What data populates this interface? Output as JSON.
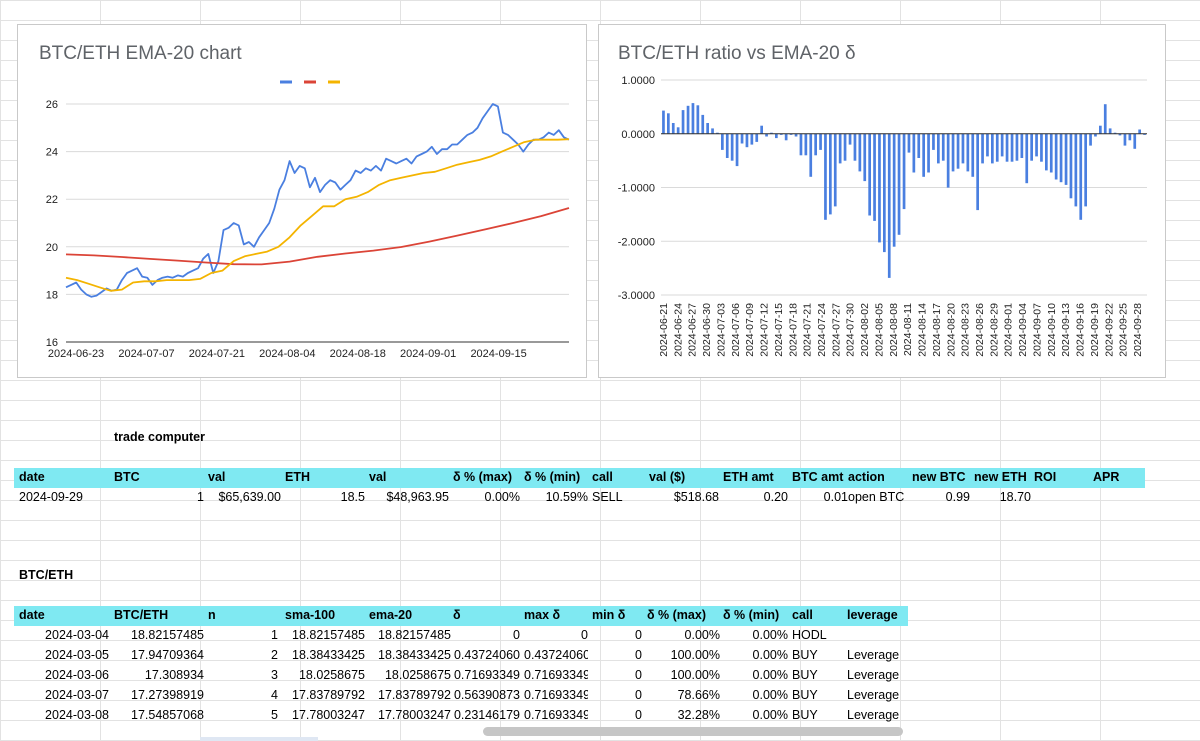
{
  "colors": {
    "blue": "#4a7fe0",
    "red": "#db4437",
    "yellow": "#f4b400",
    "header_bg": "#7fe9f2",
    "bar": "#4a7fe0"
  },
  "chart1": {
    "title": "BTC/ETH EMA-20 chart",
    "y_ticks": [
      "26",
      "24",
      "22",
      "20",
      "18",
      "16"
    ],
    "x_ticks": [
      "2024-06-23",
      "2024-07-07",
      "2024-07-21",
      "2024-08-04",
      "2024-08-18",
      "2024-09-01",
      "2024-09-15"
    ]
  },
  "chart2": {
    "title": "BTC/ETH ratio vs EMA-20 δ",
    "y_ticks": [
      "1.0000",
      "0.0000",
      "-1.0000",
      "-2.0000",
      "-3.0000"
    ],
    "x_ticks": [
      "2024-06-21",
      "2024-06-24",
      "2024-06-27",
      "2024-06-30",
      "2024-07-03",
      "2024-07-06",
      "2024-07-09",
      "2024-07-12",
      "2024-07-15",
      "2024-07-18",
      "2024-07-21",
      "2024-07-24",
      "2024-07-27",
      "2024-07-30",
      "2024-08-02",
      "2024-08-05",
      "2024-08-08",
      "2024-08-11",
      "2024-08-14",
      "2024-08-17",
      "2024-08-20",
      "2024-08-23",
      "2024-08-26",
      "2024-08-29",
      "2024-09-01",
      "2024-09-04",
      "2024-09-07",
      "2024-09-10",
      "2024-09-13",
      "2024-09-16",
      "2024-09-19",
      "2024-09-22",
      "2024-09-25",
      "2024-09-28"
    ]
  },
  "chart_data": [
    {
      "type": "line",
      "title": "BTC/ETH EMA-20 chart",
      "x_range": [
        "2024-06-21",
        "2024-09-29"
      ],
      "ylim": [
        16,
        26
      ],
      "grid": true,
      "legend": "top",
      "series": [
        {
          "color": "#4a7fe0",
          "values": [
            18.3,
            18.4,
            18.5,
            18.2,
            18.0,
            17.9,
            17.95,
            18.1,
            18.25,
            18.15,
            18.2,
            18.6,
            18.9,
            19.0,
            19.1,
            18.75,
            18.7,
            18.4,
            18.6,
            18.7,
            18.75,
            18.7,
            18.8,
            18.75,
            18.9,
            19.0,
            19.1,
            19.5,
            19.7,
            18.9,
            19.4,
            20.7,
            20.8,
            21.0,
            20.9,
            20.1,
            20.2,
            20.0,
            20.4,
            20.7,
            21.0,
            21.6,
            22.4,
            22.8,
            23.6,
            23.1,
            23.4,
            23.3,
            22.5,
            22.9,
            22.3,
            22.6,
            22.8,
            22.7,
            22.4,
            22.6,
            22.8,
            23.2,
            23.1,
            23.3,
            23.2,
            23.4,
            23.2,
            23.7,
            23.6,
            23.5,
            23.6,
            23.7,
            23.5,
            23.8,
            23.9,
            24.0,
            24.2,
            23.9,
            24.1,
            24.1,
            24.3,
            24.3,
            24.5,
            24.7,
            24.8,
            25.0,
            25.4,
            25.7,
            26.0,
            25.9,
            24.8,
            24.7,
            24.5,
            24.3,
            24.0,
            24.3,
            24.5,
            24.5,
            24.6,
            24.8,
            24.7,
            24.9,
            24.6,
            24.5
          ]
        },
        {
          "color": "#db4437",
          "values": [
            19.68,
            19.64,
            19.57,
            19.49,
            19.42,
            19.34,
            19.27,
            19.26,
            19.38,
            19.58,
            19.72,
            19.84,
            19.99,
            20.22,
            20.47,
            20.73,
            21.0,
            21.29,
            21.63
          ]
        },
        {
          "color": "#f4b400",
          "values": [
            18.7,
            18.6,
            18.45,
            18.3,
            18.15,
            18.2,
            18.5,
            18.55,
            18.55,
            18.6,
            18.6,
            18.6,
            18.65,
            18.9,
            19.0,
            19.4,
            19.6,
            19.7,
            19.8,
            20.0,
            20.4,
            20.9,
            21.3,
            21.7,
            21.7,
            22.0,
            22.1,
            22.3,
            22.6,
            22.8,
            22.9,
            23.0,
            23.1,
            23.15,
            23.3,
            23.45,
            23.55,
            23.65,
            23.8,
            24.0,
            24.2,
            24.4,
            24.5,
            24.5,
            24.5,
            24.52
          ]
        }
      ]
    },
    {
      "type": "bar",
      "title": "BTC/ETH ratio vs EMA-20 δ",
      "ylim": [
        -3,
        1
      ],
      "grid": true,
      "x_range": [
        "2024-06-21",
        "2024-09-29"
      ],
      "values": [
        0.43,
        0.38,
        0.2,
        0.12,
        0.44,
        0.52,
        0.57,
        0.53,
        0.35,
        0.2,
        0.1,
        0.02,
        -0.3,
        -0.45,
        -0.5,
        -0.6,
        -0.18,
        -0.25,
        -0.2,
        -0.15,
        0.15,
        -0.05,
        0.02,
        -0.08,
        -0.02,
        -0.12,
        -0.02,
        -0.05,
        -0.4,
        -0.4,
        -0.8,
        -0.4,
        -0.3,
        -1.6,
        -1.5,
        -1.35,
        -0.55,
        -0.5,
        -0.2,
        -0.5,
        -0.7,
        -0.88,
        -1.52,
        -1.62,
        -2.02,
        -2.2,
        -2.68,
        -2.1,
        -1.88,
        -1.4,
        -0.35,
        -0.72,
        -0.45,
        -0.8,
        -0.72,
        -0.3,
        -0.55,
        -0.5,
        -1.0,
        -0.7,
        -0.65,
        -0.55,
        -0.7,
        -0.8,
        -1.42,
        -0.55,
        -0.42,
        -0.55,
        -0.52,
        -0.42,
        -0.52,
        -0.52,
        -0.5,
        -0.45,
        -0.92,
        -0.5,
        -0.42,
        -0.52,
        -0.68,
        -0.72,
        -0.85,
        -0.9,
        -0.95,
        -1.2,
        -1.35,
        -1.6,
        -1.35,
        -0.22,
        -0.05,
        0.15,
        0.55,
        0.1,
        0.02,
        -0.03,
        -0.22,
        -0.12,
        -0.28,
        0.08,
        -0.02
      ]
    }
  ],
  "section1": {
    "label": "trade computer",
    "headers": [
      "date",
      "BTC",
      "val",
      "ETH",
      "val",
      "δ % (max)",
      "δ % (min)",
      "call",
      "val ($)",
      "ETH amt",
      "BTC amt",
      "action",
      "new BTC",
      "new ETH",
      "ROI",
      "APR"
    ],
    "row": [
      "2024-09-29",
      "1",
      "$65,639.00",
      "18.5",
      "$48,963.95",
      "0.00%",
      "10.59%",
      "SELL",
      "$518.68",
      "0.20",
      "0.01",
      "open BTC",
      "0.99",
      "18.70",
      "",
      ""
    ]
  },
  "section2": {
    "label": "BTC/ETH",
    "headers": [
      "date",
      "BTC/ETH",
      "n",
      "sma-100",
      "ema-20",
      "δ",
      "max δ",
      "min δ",
      "δ % (max)",
      "δ % (min)",
      "call",
      "leverage"
    ],
    "rows": [
      [
        "2024-03-04",
        "18.82157485",
        "1",
        "18.82157485",
        "18.82157485",
        "0",
        "0",
        "0",
        "0.00%",
        "0.00%",
        "HODL",
        ""
      ],
      [
        "2024-03-05",
        "17.94709364",
        "2",
        "18.38433425",
        "18.38433425",
        "0.43724060",
        "0.43724060",
        "0",
        "100.00%",
        "0.00%",
        "BUY",
        "Leverage"
      ],
      [
        "2024-03-06",
        "17.308934",
        "3",
        "18.0258675",
        "18.0258675",
        "0.71693349",
        "0.71693349",
        "0",
        "100.00%",
        "0.00%",
        "BUY",
        "Leverage"
      ],
      [
        "2024-03-07",
        "17.27398919",
        "4",
        "17.83789792",
        "17.83789792",
        "0.56390873",
        "0.71693349",
        "0",
        "78.66%",
        "0.00%",
        "BUY",
        "Leverage"
      ],
      [
        "2024-03-08",
        "17.54857068",
        "5",
        "17.78003247",
        "17.78003247",
        "0.23146179",
        "0.71693349",
        "0",
        "32.28%",
        "0.00%",
        "BUY",
        "Leverage"
      ]
    ]
  }
}
